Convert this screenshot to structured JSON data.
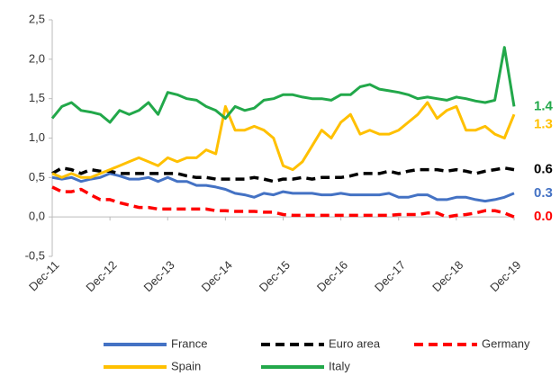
{
  "chart_data": {
    "type": "line",
    "categories": [
      "Dec-11",
      null,
      null,
      null,
      null,
      null,
      "Dec-12",
      null,
      null,
      null,
      null,
      null,
      "Dec-13",
      null,
      null,
      null,
      null,
      null,
      "Dec-14",
      null,
      null,
      null,
      null,
      null,
      "Dec-15",
      null,
      null,
      null,
      null,
      null,
      "Dec-16",
      null,
      null,
      null,
      null,
      null,
      "Dec-17",
      null,
      null,
      null,
      null,
      null,
      "Dec-18",
      null,
      null,
      null,
      null,
      null,
      "Dec-19"
    ],
    "ylim": [
      -0.5,
      2.5
    ],
    "yticks": [
      {
        "value": -0.5,
        "label": "-0,5"
      },
      {
        "value": 0,
        "label": "0,0"
      },
      {
        "value": 0.5,
        "label": "0,5"
      },
      {
        "value": 1,
        "label": "1,0"
      },
      {
        "value": 1.5,
        "label": "1,5"
      },
      {
        "value": 2,
        "label": "2,0"
      },
      {
        "value": 2.5,
        "label": "2,5"
      }
    ],
    "grid": false,
    "legend": "bottom",
    "series": [
      {
        "name": "France",
        "color": "#4472c4",
        "dashed": false,
        "values": [
          0.5,
          0.48,
          0.5,
          0.45,
          0.48,
          0.5,
          0.55,
          0.52,
          0.48,
          0.48,
          0.5,
          0.45,
          0.5,
          0.45,
          0.45,
          0.4,
          0.4,
          0.38,
          0.35,
          0.3,
          0.28,
          0.25,
          0.3,
          0.28,
          0.32,
          0.3,
          0.3,
          0.3,
          0.28,
          0.28,
          0.3,
          0.28,
          0.28,
          0.28,
          0.28,
          0.3,
          0.25,
          0.25,
          0.28,
          0.28,
          0.22,
          0.22,
          0.25,
          0.25,
          0.22,
          0.2,
          0.22,
          0.25,
          0.3
        ]
      },
      {
        "name": "Euro area",
        "color": "#000000",
        "dashed": true,
        "values": [
          0.55,
          0.62,
          0.6,
          0.55,
          0.6,
          0.58,
          0.58,
          0.55,
          0.55,
          0.55,
          0.55,
          0.55,
          0.55,
          0.55,
          0.52,
          0.5,
          0.5,
          0.48,
          0.48,
          0.48,
          0.48,
          0.5,
          0.48,
          0.45,
          0.48,
          0.48,
          0.5,
          0.48,
          0.5,
          0.5,
          0.5,
          0.52,
          0.55,
          0.55,
          0.55,
          0.58,
          0.55,
          0.58,
          0.6,
          0.6,
          0.6,
          0.58,
          0.6,
          0.58,
          0.55,
          0.58,
          0.6,
          0.62,
          0.6
        ]
      },
      {
        "name": "Germany",
        "color": "#ff0000",
        "dashed": true,
        "values": [
          0.38,
          0.32,
          0.32,
          0.35,
          0.28,
          0.22,
          0.22,
          0.18,
          0.15,
          0.12,
          0.12,
          0.1,
          0.1,
          0.1,
          0.1,
          0.1,
          0.1,
          0.08,
          0.08,
          0.07,
          0.07,
          0.07,
          0.06,
          0.06,
          0.03,
          0.02,
          0.02,
          0.02,
          0.02,
          0.02,
          0.02,
          0.02,
          0.02,
          0.02,
          0.02,
          0.02,
          0.03,
          0.03,
          0.03,
          0.05,
          0.05,
          0.0,
          0.02,
          0.03,
          0.05,
          0.08,
          0.08,
          0.05,
          0
        ],
        "value_labels": [
          null,
          null,
          null,
          null,
          null,
          null,
          null,
          null,
          null,
          null,
          null,
          null,
          null,
          null,
          null,
          null,
          null,
          null,
          null,
          null,
          null,
          null,
          null,
          null,
          null,
          null,
          null,
          null,
          null,
          null,
          null,
          null,
          null,
          null,
          null,
          null,
          null,
          null,
          null,
          null,
          null,
          null,
          null,
          null,
          null,
          null,
          null,
          null,
          "0.0"
        ]
      },
      {
        "name": "Spain",
        "color": "#ffc000",
        "dashed": false,
        "values": [
          0.55,
          0.5,
          0.55,
          0.5,
          0.5,
          0.55,
          0.6,
          0.65,
          0.7,
          0.75,
          0.7,
          0.65,
          0.75,
          0.7,
          0.75,
          0.75,
          0.85,
          0.8,
          1.4,
          1.1,
          1.1,
          1.15,
          1.1,
          1.0,
          0.65,
          0.6,
          0.7,
          0.9,
          1.1,
          1.0,
          1.2,
          1.3,
          1.05,
          1.1,
          1.05,
          1.05,
          1.1,
          1.2,
          1.3,
          1.45,
          1.25,
          1.35,
          1.4,
          1.1,
          1.1,
          1.15,
          1.05,
          1.0,
          1.3
        ]
      },
      {
        "name": "Italy",
        "color": "#22a84a",
        "dashed": false,
        "values": [
          1.25,
          1.4,
          1.45,
          1.35,
          1.33,
          1.3,
          1.2,
          1.35,
          1.3,
          1.35,
          1.45,
          1.3,
          1.58,
          1.55,
          1.5,
          1.48,
          1.4,
          1.35,
          1.25,
          1.4,
          1.35,
          1.38,
          1.48,
          1.5,
          1.55,
          1.55,
          1.52,
          1.5,
          1.5,
          1.48,
          1.55,
          1.55,
          1.65,
          1.68,
          1.62,
          1.6,
          1.58,
          1.55,
          1.5,
          1.52,
          1.5,
          1.48,
          1.52,
          1.5,
          1.47,
          1.45,
          1.48,
          2.15,
          1.4
        ]
      }
    ]
  }
}
